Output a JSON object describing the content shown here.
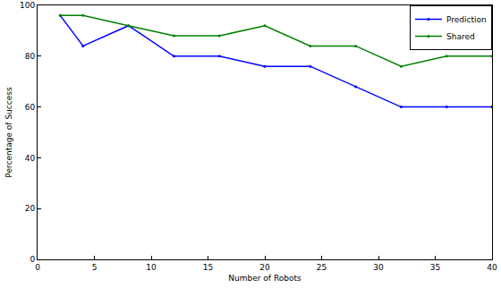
{
  "chart_data": {
    "type": "line",
    "x_label": "Number of Robots",
    "y_label": "Percentage of Success",
    "series": [
      {
        "name": "Prediction",
        "color": "#0000ff",
        "marker": "circle",
        "line_style": "solid",
        "x": [
          2,
          4,
          8,
          12,
          16,
          20,
          24,
          28,
          32,
          36,
          40
        ],
        "values": [
          96,
          84,
          92,
          80,
          80,
          76,
          76,
          68,
          60,
          60,
          60
        ]
      },
      {
        "name": "Shared",
        "color": "#008000",
        "marker": "circle",
        "line_style": "solid",
        "x": [
          2,
          4,
          8,
          12,
          16,
          20,
          24,
          28,
          32,
          36,
          40
        ],
        "values": [
          96,
          96,
          92,
          88,
          88,
          92,
          84,
          84,
          76,
          80,
          80
        ]
      }
    ],
    "xlim": [
      0,
      40
    ],
    "xticks": [
      0,
      5,
      10,
      15,
      20,
      25,
      30,
      35,
      40
    ],
    "ylim": [
      0,
      100
    ],
    "yticks": [
      0,
      20,
      40,
      60,
      80,
      100
    ],
    "grid": false,
    "legend": "top right"
  }
}
